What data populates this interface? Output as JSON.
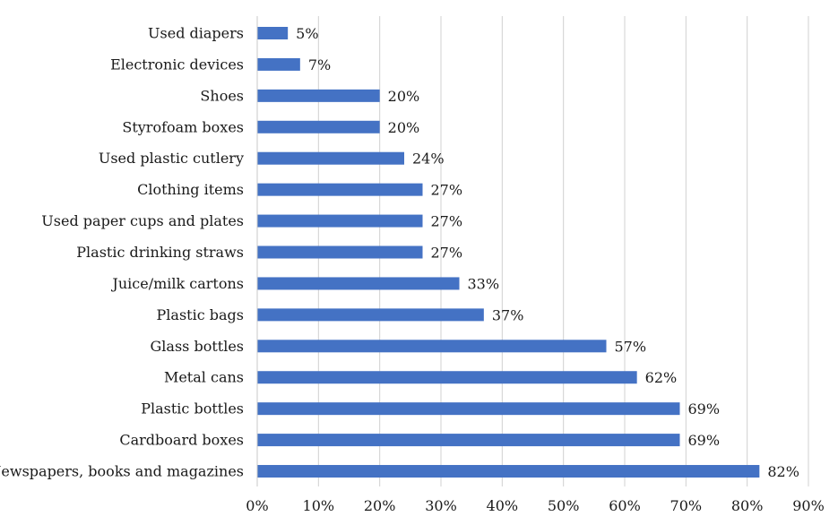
{
  "chart_data": {
    "type": "bar",
    "orientation": "horizontal",
    "title": "",
    "xlabel": "",
    "ylabel": "",
    "bar_color": "#4472C4",
    "grid": true,
    "legend": "none",
    "xlim": [
      0,
      90
    ],
    "x_ticks": [
      "0%",
      "10%",
      "20%",
      "30%",
      "40%",
      "50%",
      "60%",
      "70%",
      "80%",
      "90%"
    ],
    "categories": [
      "Used diapers",
      "Electronic devices",
      "Shoes",
      "Styrofoam boxes",
      "Used plastic cutlery",
      "Clothing items",
      "Used paper cups and plates",
      "Plastic drinking straws",
      "Juice/milk cartons",
      "Plastic bags",
      "Glass bottles",
      "Metal cans",
      "Plastic bottles",
      "Cardboard boxes",
      "Newspapers, books and magazines"
    ],
    "values": [
      5,
      7,
      20,
      20,
      24,
      27,
      27,
      27,
      33,
      37,
      57,
      62,
      69,
      69,
      82
    ],
    "value_labels": [
      "5%",
      "7%",
      "20%",
      "20%",
      "24%",
      "27%",
      "27%",
      "27%",
      "33%",
      "37%",
      "57%",
      "62%",
      "69%",
      "69%",
      "82%"
    ]
  }
}
